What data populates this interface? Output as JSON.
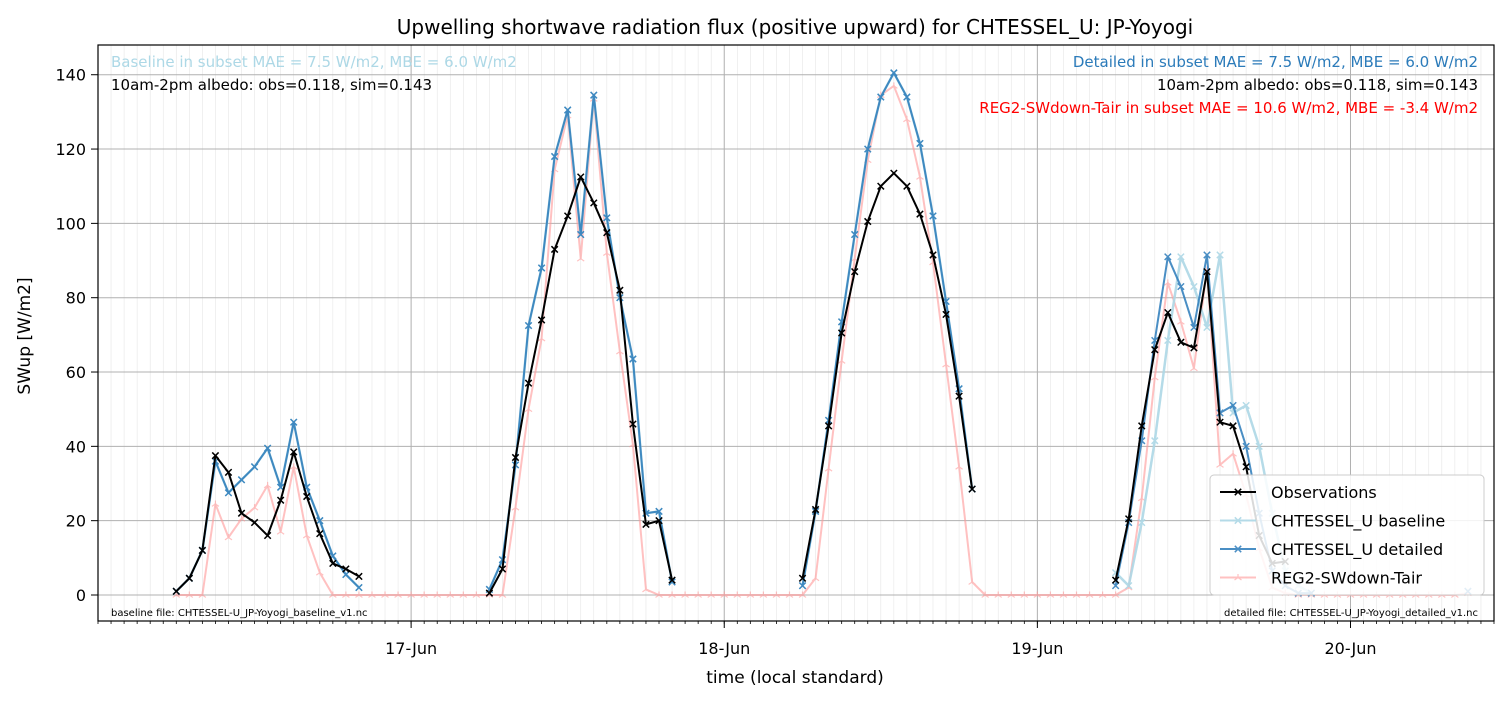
{
  "chart_data": {
    "type": "line",
    "title": "Upwelling shortwave radiation flux (positive upward) for CHTESSEL_U: JP-Yoyogi",
    "xlabel": "time (local standard)",
    "ylabel": "SWup [W/m2]",
    "ylim": [
      -7,
      148
    ],
    "xlim": [
      "2012-06-16T00:00",
      "2012-06-20T11:00"
    ],
    "yticks": [
      0,
      20,
      40,
      60,
      80,
      100,
      120,
      140
    ],
    "xticks": [
      {
        "t": "2012-06-17T00:00",
        "label": "17-Jun"
      },
      {
        "t": "2012-06-18T00:00",
        "label": "18-Jun"
      },
      {
        "t": "2012-06-19T00:00",
        "label": "19-Jun"
      },
      {
        "t": "2012-06-20T00:00",
        "label": "20-Jun"
      }
    ],
    "grid": true,
    "legend_position": "lower-right",
    "annotations": {
      "baseline_stats": "Baseline in subset MAE = 7.5 W/m2, MBE = 6.0 W/m2",
      "baseline_albedo": "10am-2pm albedo: obs=0.118, sim=0.143",
      "detailed_stats": "Detailed in subset MAE = 7.5 W/m2, MBE = 6.0 W/m2",
      "detailed_albedo": "10am-2pm albedo: obs=0.118, sim=0.143",
      "reg2_stats": "REG2-SWdown-Tair in subset MAE = 10.6 W/m2, MBE = -3.4 W/m2",
      "baseline_file": "baseline file: CHTESSEL-U_JP-Yoyogi_baseline_v1.nc",
      "detailed_file": "detailed file: CHTESSEL-U_JP-Yoyogi_detailed_v1.nc"
    },
    "series": [
      {
        "name": "Observations",
        "color": "#000000",
        "marker": "x",
        "x": [
          "2012-06-16T06:00",
          "2012-06-16T07:00",
          "2012-06-16T08:00",
          "2012-06-16T09:00",
          "2012-06-16T10:00",
          "2012-06-16T11:00",
          "2012-06-16T12:00",
          "2012-06-16T13:00",
          "2012-06-16T14:00",
          "2012-06-16T15:00",
          "2012-06-16T16:00",
          "2012-06-16T17:00",
          "2012-06-16T18:00",
          "2012-06-16T19:00",
          "2012-06-16T20:00",
          "2012-06-17T06:00",
          "2012-06-17T07:00",
          "2012-06-17T08:00",
          "2012-06-17T09:00",
          "2012-06-17T10:00",
          "2012-06-17T11:00",
          "2012-06-17T12:00",
          "2012-06-17T13:00",
          "2012-06-17T14:00",
          "2012-06-17T15:00",
          "2012-06-17T16:00",
          "2012-06-17T17:00",
          "2012-06-17T18:00",
          "2012-06-17T19:00",
          "2012-06-17T20:00",
          "2012-06-18T06:00",
          "2012-06-18T07:00",
          "2012-06-18T08:00",
          "2012-06-18T09:00",
          "2012-06-18T10:00",
          "2012-06-18T11:00",
          "2012-06-18T12:00",
          "2012-06-18T13:00",
          "2012-06-18T14:00",
          "2012-06-18T15:00",
          "2012-06-18T16:00",
          "2012-06-18T17:00",
          "2012-06-18T18:00",
          "2012-06-18T19:00",
          "2012-06-19T06:00",
          "2012-06-19T07:00",
          "2012-06-19T08:00",
          "2012-06-19T09:00",
          "2012-06-19T10:00",
          "2012-06-19T11:00",
          "2012-06-19T12:00",
          "2012-06-19T13:00",
          "2012-06-19T14:00",
          "2012-06-19T15:00",
          "2012-06-19T16:00",
          "2012-06-19T17:00",
          "2012-06-19T18:00",
          "2012-06-19T19:00"
        ],
        "values": [
          1,
          4.5,
          12,
          37.5,
          33,
          22,
          19.5,
          16,
          25.5,
          38.5,
          26.5,
          16.5,
          8.5,
          7,
          5,
          0.5,
          7,
          37,
          57,
          74,
          93,
          102,
          112.5,
          105.5,
          97.5,
          82,
          46,
          19,
          20,
          4,
          4.5,
          23,
          45.5,
          70.5,
          87,
          100.5,
          110,
          113.5,
          110,
          102.5,
          91.5,
          75.5,
          53.5,
          28.5,
          4,
          20.5,
          45.5,
          66,
          76,
          68,
          66.5,
          87,
          46.5,
          45.5,
          34.5,
          16,
          8.5,
          9
        ]
      },
      {
        "name": "CHTESSEL_U baseline",
        "color": "#add8e6",
        "marker": "x",
        "x": [
          "2012-06-16T06:00",
          "2012-06-16T07:00",
          "2012-06-16T08:00",
          "2012-06-16T09:00",
          "2012-06-16T10:00",
          "2012-06-16T11:00",
          "2012-06-16T12:00",
          "2012-06-16T13:00",
          "2012-06-16T14:00",
          "2012-06-16T15:00",
          "2012-06-16T16:00",
          "2012-06-16T17:00",
          "2012-06-16T18:00",
          "2012-06-16T19:00",
          "2012-06-16T20:00",
          "2012-06-17T06:00",
          "2012-06-17T07:00",
          "2012-06-17T08:00",
          "2012-06-17T09:00",
          "2012-06-17T10:00",
          "2012-06-17T11:00",
          "2012-06-17T12:00",
          "2012-06-17T13:00",
          "2012-06-17T14:00",
          "2012-06-17T15:00",
          "2012-06-17T16:00",
          "2012-06-17T17:00",
          "2012-06-17T18:00",
          "2012-06-17T19:00",
          "2012-06-17T20:00",
          "2012-06-18T06:00",
          "2012-06-18T07:00",
          "2012-06-18T08:00",
          "2012-06-18T09:00",
          "2012-06-18T10:00",
          "2012-06-18T11:00",
          "2012-06-18T12:00",
          "2012-06-18T13:00",
          "2012-06-18T14:00",
          "2012-06-18T15:00",
          "2012-06-18T16:00",
          "2012-06-18T17:00",
          "2012-06-18T18:00",
          "2012-06-18T19:00",
          "2012-06-19T06:00",
          "2012-06-19T07:00",
          "2012-06-19T08:00",
          "2012-06-19T09:00",
          "2012-06-19T10:00",
          "2012-06-19T11:00",
          "2012-06-19T12:00",
          "2012-06-19T13:00",
          "2012-06-19T14:00",
          "2012-06-19T15:00",
          "2012-06-19T16:00",
          "2012-06-19T17:00",
          "2012-06-19T18:00",
          "2012-06-19T19:00",
          "2012-06-19T20:00",
          "2012-06-19T21:00",
          "2012-06-20T09:00"
        ],
        "values": [
          1,
          4.5,
          12,
          36,
          27.5,
          31,
          34.5,
          39.5,
          29,
          46.5,
          29,
          20,
          10.5,
          5.5,
          2,
          1.5,
          9.5,
          35,
          72.5,
          88,
          118,
          130.5,
          97,
          134.5,
          101.5,
          80,
          63.5,
          22,
          22.5,
          3.5,
          2.5,
          22.5,
          47,
          73.5,
          97,
          120,
          134,
          140.5,
          134,
          121.5,
          102,
          79,
          55.5,
          28.5,
          6,
          2.5,
          19.5,
          41.5,
          68.5,
          91,
          83,
          72,
          91.5,
          49,
          51,
          40,
          22,
          6.5,
          2.5,
          0.5,
          1
        ]
      },
      {
        "name": "CHTESSEL_U detailed",
        "color": "#2b7bba",
        "marker": "x",
        "x": [
          "2012-06-16T06:00",
          "2012-06-16T07:00",
          "2012-06-16T08:00",
          "2012-06-16T09:00",
          "2012-06-16T10:00",
          "2012-06-16T11:00",
          "2012-06-16T12:00",
          "2012-06-16T13:00",
          "2012-06-16T14:00",
          "2012-06-16T15:00",
          "2012-06-16T16:00",
          "2012-06-16T17:00",
          "2012-06-16T18:00",
          "2012-06-16T19:00",
          "2012-06-16T20:00",
          "2012-06-17T06:00",
          "2012-06-17T07:00",
          "2012-06-17T08:00",
          "2012-06-17T09:00",
          "2012-06-17T10:00",
          "2012-06-17T11:00",
          "2012-06-17T12:00",
          "2012-06-17T13:00",
          "2012-06-17T14:00",
          "2012-06-17T15:00",
          "2012-06-17T16:00",
          "2012-06-17T17:00",
          "2012-06-17T18:00",
          "2012-06-17T19:00",
          "2012-06-17T20:00",
          "2012-06-18T06:00",
          "2012-06-18T07:00",
          "2012-06-18T08:00",
          "2012-06-18T09:00",
          "2012-06-18T10:00",
          "2012-06-18T11:00",
          "2012-06-18T12:00",
          "2012-06-18T13:00",
          "2012-06-18T14:00",
          "2012-06-18T15:00",
          "2012-06-18T16:00",
          "2012-06-18T17:00",
          "2012-06-18T18:00",
          "2012-06-18T19:00",
          "2012-06-19T06:00",
          "2012-06-19T07:00",
          "2012-06-19T08:00",
          "2012-06-19T09:00",
          "2012-06-19T10:00",
          "2012-06-19T11:00",
          "2012-06-19T12:00",
          "2012-06-19T13:00",
          "2012-06-19T14:00",
          "2012-06-19T15:00",
          "2012-06-19T16:00",
          "2012-06-19T17:00",
          "2012-06-19T18:00",
          "2012-06-19T19:00",
          "2012-06-19T20:00",
          "2012-06-19T21:00",
          "2012-06-20T09:00"
        ],
        "values": [
          1,
          4.5,
          12,
          36,
          27.5,
          31,
          34.5,
          39.5,
          29,
          46.5,
          29,
          20,
          10.5,
          5.5,
          2,
          1.5,
          9.5,
          35,
          72.5,
          88,
          118,
          130.5,
          97,
          134.5,
          101.5,
          80,
          63.5,
          22,
          22.5,
          3.5,
          2.5,
          22.5,
          47,
          73.5,
          97,
          120,
          134,
          140.5,
          134,
          121.5,
          102,
          79,
          55.5,
          28.5,
          2.5,
          19.5,
          41.5,
          68.5,
          91,
          83,
          72,
          91.5,
          49,
          51,
          40,
          22,
          6.5,
          2.5,
          0.5,
          0.5,
          1
        ]
      },
      {
        "name": "REG2-SWdown-Tair",
        "color": "#ff9999",
        "marker": "tri",
        "x": [
          "2012-06-16T06:00",
          "2012-06-16T07:00",
          "2012-06-16T08:00",
          "2012-06-16T09:00",
          "2012-06-16T10:00",
          "2012-06-16T11:00",
          "2012-06-16T12:00",
          "2012-06-16T13:00",
          "2012-06-16T14:00",
          "2012-06-16T15:00",
          "2012-06-16T16:00",
          "2012-06-16T17:00",
          "2012-06-16T18:00",
          "2012-06-16T19:00",
          "2012-06-16T20:00",
          "2012-06-16T21:00",
          "2012-06-16T22:00",
          "2012-06-16T23:00",
          "2012-06-17T00:00",
          "2012-06-17T01:00",
          "2012-06-17T02:00",
          "2012-06-17T03:00",
          "2012-06-17T04:00",
          "2012-06-17T05:00",
          "2012-06-17T06:00",
          "2012-06-17T07:00",
          "2012-06-17T08:00",
          "2012-06-17T09:00",
          "2012-06-17T10:00",
          "2012-06-17T11:00",
          "2012-06-17T12:00",
          "2012-06-17T13:00",
          "2012-06-17T14:00",
          "2012-06-17T15:00",
          "2012-06-17T16:00",
          "2012-06-17T17:00",
          "2012-06-17T18:00",
          "2012-06-17T19:00",
          "2012-06-17T20:00",
          "2012-06-17T21:00",
          "2012-06-17T22:00",
          "2012-06-17T23:00",
          "2012-06-18T00:00",
          "2012-06-18T01:00",
          "2012-06-18T02:00",
          "2012-06-18T03:00",
          "2012-06-18T04:00",
          "2012-06-18T05:00",
          "2012-06-18T06:00",
          "2012-06-18T07:00",
          "2012-06-18T08:00",
          "2012-06-18T09:00",
          "2012-06-18T10:00",
          "2012-06-18T11:00",
          "2012-06-18T12:00",
          "2012-06-18T13:00",
          "2012-06-18T14:00",
          "2012-06-18T15:00",
          "2012-06-18T16:00",
          "2012-06-18T17:00",
          "2012-06-18T18:00",
          "2012-06-18T19:00",
          "2012-06-18T20:00",
          "2012-06-18T21:00",
          "2012-06-18T22:00",
          "2012-06-18T23:00",
          "2012-06-19T00:00",
          "2012-06-19T01:00",
          "2012-06-19T02:00",
          "2012-06-19T03:00",
          "2012-06-19T04:00",
          "2012-06-19T05:00",
          "2012-06-19T06:00",
          "2012-06-19T07:00",
          "2012-06-19T08:00",
          "2012-06-19T09:00",
          "2012-06-19T10:00",
          "2012-06-19T11:00",
          "2012-06-19T12:00",
          "2012-06-19T13:00",
          "2012-06-19T14:00",
          "2012-06-19T15:00",
          "2012-06-19T16:00",
          "2012-06-19T17:00",
          "2012-06-19T18:00",
          "2012-06-19T19:00",
          "2012-06-19T20:00",
          "2012-06-19T21:00",
          "2012-06-19T22:00",
          "2012-06-19T23:00",
          "2012-06-20T00:00",
          "2012-06-20T01:00",
          "2012-06-20T02:00",
          "2012-06-20T03:00",
          "2012-06-20T04:00",
          "2012-06-20T05:00",
          "2012-06-20T06:00",
          "2012-06-20T07:00",
          "2012-06-20T08:00",
          "2012-06-20T09:00"
        ],
        "values": [
          0,
          0,
          0,
          24.5,
          15.5,
          20.5,
          23.5,
          29.5,
          17,
          34.5,
          16,
          6,
          0,
          0,
          0,
          0,
          0,
          0,
          0,
          0,
          0,
          0,
          0,
          0,
          0,
          0,
          23.5,
          50,
          69,
          114.5,
          129,
          90.5,
          133.5,
          92,
          65.5,
          40.5,
          1.5,
          0,
          0,
          0,
          0,
          0,
          0,
          0,
          0,
          0,
          0,
          0,
          0,
          4.5,
          34,
          63,
          90.5,
          117,
          134.5,
          137,
          128,
          112.5,
          89.5,
          62,
          34.5,
          3.5,
          0,
          0,
          0,
          0,
          0,
          0,
          0,
          0,
          0,
          0,
          0,
          2,
          26,
          58.5,
          84,
          73.5,
          61,
          87.5,
          35,
          38,
          27,
          12.5,
          2,
          0.5,
          0,
          0,
          0,
          0,
          0,
          0,
          0,
          0,
          0,
          0,
          0,
          0,
          0,
          0.5
        ]
      }
    ]
  }
}
